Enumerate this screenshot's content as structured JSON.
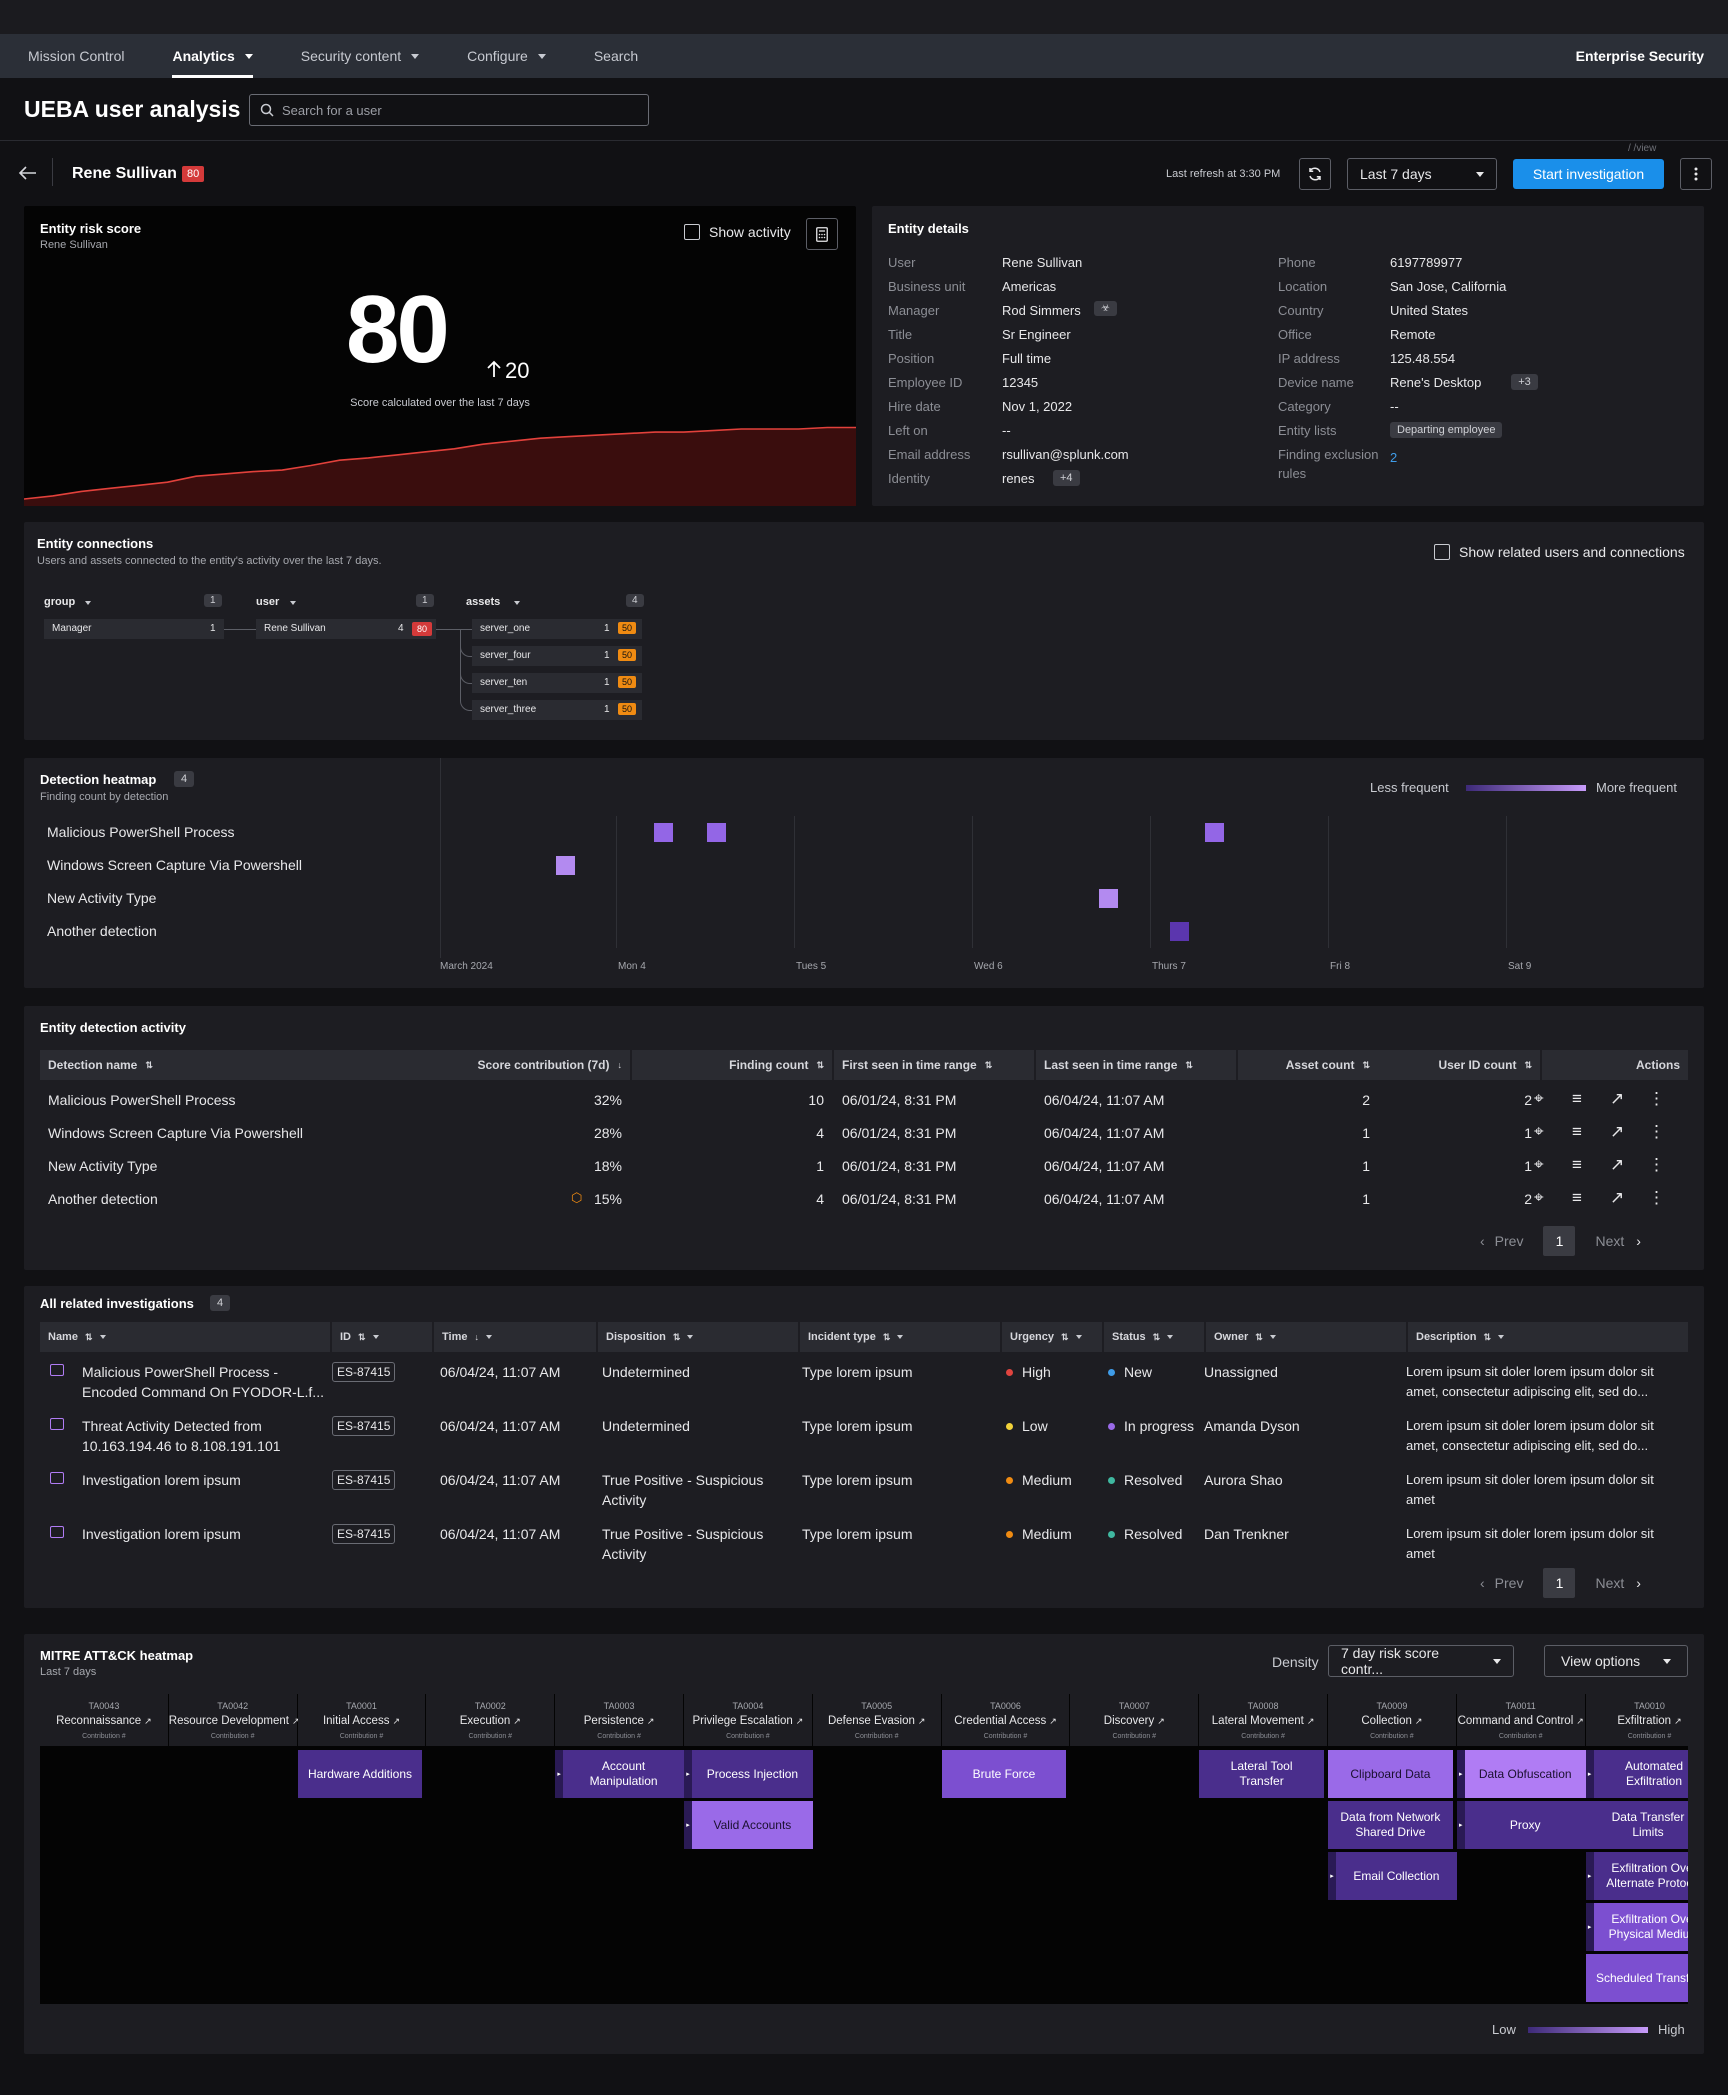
{
  "nav": {
    "items": [
      {
        "label": "Mission Control",
        "dd": false
      },
      {
        "label": "Analytics",
        "dd": true
      },
      {
        "label": "Security content",
        "dd": true
      },
      {
        "label": "Configure",
        "dd": true
      },
      {
        "label": "Search",
        "dd": false
      }
    ],
    "brand": "Enterprise Security"
  },
  "page": {
    "title": "UEBA user analysis",
    "search_placeholder": "Search for a user",
    "view_hint": "/ /view"
  },
  "header": {
    "user": "Rene Sullivan",
    "score": "80",
    "last_refresh": "Last refresh at 3:30 PM",
    "range": "Last 7 days",
    "start": "Start investigation"
  },
  "risk": {
    "title": "Entity risk score",
    "subtitle": "Rene Sullivan",
    "show_activity": "Show activity",
    "score": "80",
    "delta": "20",
    "note": "Score calculated over the last 7 days",
    "trend": [
      4,
      8,
      14,
      18,
      22,
      26,
      34,
      37,
      40,
      42,
      48,
      55,
      58,
      62,
      66,
      70,
      76,
      80,
      84,
      86,
      88,
      90,
      92,
      92,
      94,
      96,
      96,
      96,
      98,
      98
    ]
  },
  "details": {
    "title": "Entity details",
    "left": [
      {
        "k": "User",
        "v": "Rene Sullivan"
      },
      {
        "k": "Business unit",
        "v": "Americas"
      },
      {
        "k": "Manager",
        "v": "Rod Simmers",
        "icon": true
      },
      {
        "k": "Title",
        "v": "Sr Engineer"
      },
      {
        "k": "Position",
        "v": "Full time"
      },
      {
        "k": "Employee ID",
        "v": "12345"
      },
      {
        "k": "Hire date",
        "v": "Nov 1, 2022"
      },
      {
        "k": "Left on",
        "v": "--"
      },
      {
        "k": "Email address",
        "v": "rsullivan@splunk.com"
      },
      {
        "k": "Identity",
        "v": "renes",
        "extra": "+4"
      }
    ],
    "right": [
      {
        "k": "Phone",
        "v": "6197789977"
      },
      {
        "k": "Location",
        "v": "San Jose, California"
      },
      {
        "k": "Country",
        "v": "United States"
      },
      {
        "k": "Office",
        "v": "Remote"
      },
      {
        "k": "IP address",
        "v": "125.48.554"
      },
      {
        "k": "Device name",
        "v": "Rene's Desktop",
        "extra": "+3"
      },
      {
        "k": "Category",
        "v": "--"
      },
      {
        "k": "Entity lists",
        "v": "",
        "tag": "Departing employee"
      },
      {
        "k": "Finding exclusion",
        "k2": "rules",
        "v": "2",
        "link": true
      }
    ]
  },
  "connections": {
    "title": "Entity connections",
    "subtitle": "Users and assets connected to the entity's activity over the last 7 days.",
    "toggle": "Show related users and connections",
    "cols": [
      {
        "h": "group",
        "n": "1"
      },
      {
        "h": "user",
        "n": "1"
      },
      {
        "h": "assets",
        "n": "4"
      }
    ],
    "group": {
      "name": "Manager",
      "n": "1"
    },
    "user": {
      "name": "Rene Sullivan",
      "n": "4",
      "score": "80"
    },
    "assets": [
      {
        "name": "server_one",
        "n": "1",
        "s": "50"
      },
      {
        "name": "server_four",
        "n": "1",
        "s": "50"
      },
      {
        "name": "server_ten",
        "n": "1",
        "s": "50"
      },
      {
        "name": "server_three",
        "n": "1",
        "s": "50"
      }
    ]
  },
  "heatmap": {
    "title": "Detection heatmap",
    "count": "4",
    "subtitle": "Finding count by detection",
    "less": "Less frequent",
    "more": "More frequent",
    "rows": [
      "Malicious PowerShell Process",
      "Windows Screen Capture Via Powershell",
      "New Activity Type",
      "Another detection"
    ],
    "xlabels": [
      "March 2024",
      "Mon 4",
      "Tues 5",
      "Wed 6",
      "Thurs 7",
      "Fri 8",
      "Sat 9"
    ],
    "cells": [
      {
        "r": 0,
        "d": 1.2,
        "i": 0.6
      },
      {
        "r": 0,
        "d": 1.5,
        "i": 0.6
      },
      {
        "r": 0,
        "d": 4.3,
        "i": 0.6
      },
      {
        "r": 1,
        "d": 0.65,
        "i": 0.3
      },
      {
        "r": 2,
        "d": 3.7,
        "i": 0.3
      },
      {
        "r": 3,
        "d": 4.1,
        "i": 0.9
      }
    ]
  },
  "activity": {
    "title": "Entity detection activity",
    "headers": [
      "Detection name",
      "Score contribution (7d)",
      "Finding count",
      "First seen in time range",
      "Last seen in time range",
      "Asset count",
      "User ID count",
      "Actions"
    ],
    "rows": [
      {
        "name": "Malicious PowerShell Process",
        "score": "32%",
        "count": "10",
        "first": "06/01/24, 8:31 PM",
        "last": "06/04/24, 11:07 AM",
        "asset": "2",
        "uid": "2"
      },
      {
        "name": "Windows Screen Capture Via Powershell",
        "score": "28%",
        "count": "4",
        "first": "06/01/24, 8:31 PM",
        "last": "06/04/24, 11:07 AM",
        "asset": "1",
        "uid": "1"
      },
      {
        "name": "New Activity Type",
        "score": "18%",
        "count": "1",
        "first": "06/01/24, 8:31 PM",
        "last": "06/04/24, 11:07 AM",
        "asset": "1",
        "uid": "1"
      },
      {
        "name": "Another detection",
        "score": "15%",
        "count": "4",
        "first": "06/01/24, 8:31 PM",
        "last": "06/04/24, 11:07 AM",
        "asset": "1",
        "uid": "2",
        "warn": true
      }
    ],
    "prev": "Prev",
    "page": "1",
    "next": "Next"
  },
  "investigations": {
    "title": "All related investigations",
    "count": "4",
    "headers": [
      "Name",
      "ID",
      "Time",
      "Disposition",
      "Incident type",
      "Urgency",
      "Status",
      "Owner",
      "Description"
    ],
    "rows": [
      {
        "name": "Malicious PowerShell Process -",
        "name2": "Encoded Command On FYODOR-L.f...",
        "id": "ES-87415",
        "time": "06/04/24, 11:07 AM",
        "disp": "Undetermined",
        "disp2": "",
        "type": "Type lorem ipsum",
        "urg": "High",
        "urgc": "#e0443f",
        "status": "New",
        "statc": "#3f9ce8",
        "owner": "Unassigned",
        "desc": "Lorem ipsum sit doler  lorem ipsum dolor sit",
        "desc2": "amet, consectetur adipiscing elit, sed do..."
      },
      {
        "name": "Threat Activity Detected from",
        "name2": "10.163.194.46 to 8.108.191.101",
        "id": "ES-87415",
        "time": "06/04/24, 11:07 AM",
        "disp": "Undetermined",
        "disp2": "",
        "type": "Type lorem ipsum",
        "urg": "Low",
        "urgc": "#f2d23a",
        "status": "In progress",
        "statc": "#9a6ae8",
        "owner": "Amanda Dyson",
        "desc": "Lorem ipsum sit doler  lorem ipsum dolor sit",
        "desc2": "amet, consectetur adipiscing elit, sed do..."
      },
      {
        "name": "Investigation lorem ipsum",
        "name2": "",
        "id": "ES-87415",
        "time": "06/04/24, 11:07 AM",
        "disp": "True Positive - Suspicious",
        "disp2": "Activity",
        "type": "Type lorem ipsum",
        "urg": "Medium",
        "urgc": "#f08b12",
        "status": "Resolved",
        "statc": "#3fb8a0",
        "owner": "Aurora Shao",
        "desc": "Lorem ipsum sit doler  lorem ipsum dolor sit",
        "desc2": "amet"
      },
      {
        "name": "Investigation lorem ipsum",
        "name2": "",
        "id": "ES-87415",
        "time": "06/04/24, 11:07 AM",
        "disp": "True Positive - Suspicious",
        "disp2": "Activity",
        "type": "Type lorem ipsum",
        "urg": "Medium",
        "urgc": "#f08b12",
        "status": "Resolved",
        "statc": "#3fb8a0",
        "owner": "Dan Trenkner",
        "desc": "Lorem ipsum sit doler  lorem ipsum dolor sit",
        "desc2": "amet"
      }
    ],
    "prev": "Prev",
    "page": "1",
    "next": "Next"
  },
  "mitre": {
    "title": "MITRE ATT&CK heatmap",
    "subtitle": "Last 7 days",
    "density": "Density",
    "density_value": "7 day risk score contr...",
    "view_options": "View options",
    "low": "Low",
    "high": "High",
    "contrib": "Contribution #",
    "tactics": [
      {
        "id": "TA0043",
        "name": "Reconnaissance"
      },
      {
        "id": "TA0042",
        "name": "Resource Development"
      },
      {
        "id": "TA0001",
        "name": "Initial Access"
      },
      {
        "id": "TA0002",
        "name": "Execution"
      },
      {
        "id": "TA0003",
        "name": "Persistence"
      },
      {
        "id": "TA0004",
        "name": "Privilege Escalation"
      },
      {
        "id": "TA0005",
        "name": "Defense Evasion"
      },
      {
        "id": "TA0006",
        "name": "Credential Access"
      },
      {
        "id": "TA0007",
        "name": "Discovery"
      },
      {
        "id": "TA0008",
        "name": "Lateral Movement"
      },
      {
        "id": "TA0009",
        "name": "Collection"
      },
      {
        "id": "TA0011",
        "name": "Command and Control"
      },
      {
        "id": "TA0010",
        "name": "Exfiltration"
      }
    ],
    "techniques": [
      {
        "c": 2,
        "r": 0,
        "t": "Hardware Additions",
        "lvl": "dark"
      },
      {
        "c": 4,
        "r": 0,
        "t": "Account\nManipulation",
        "lvl": "dark",
        "ex": true
      },
      {
        "c": 5,
        "r": 0,
        "t": "Process Injection",
        "lvl": "dark",
        "ex": true
      },
      {
        "c": 5,
        "r": 1,
        "t": "Valid Accounts",
        "lvl": "mid",
        "ex": true
      },
      {
        "c": 7,
        "r": 0,
        "t": "Brute Force",
        "lvl": "base"
      },
      {
        "c": 9,
        "r": 0,
        "t": "Lateral Tool\nTransfer",
        "lvl": "dark"
      },
      {
        "c": 10,
        "r": 0,
        "t": "Clipboard Data",
        "lvl": "mid"
      },
      {
        "c": 10,
        "r": 1,
        "t": "Data from Network\nShared Drive",
        "lvl": "dark"
      },
      {
        "c": 10,
        "r": 2,
        "t": "Email Collection",
        "lvl": "dark",
        "ex": true
      },
      {
        "c": 11,
        "r": 0,
        "t": "Data Obfuscation",
        "lvl": "light",
        "ex": true
      },
      {
        "c": 11,
        "r": 1,
        "t": "Proxy",
        "lvl": "dark",
        "ex": true
      },
      {
        "c": 12,
        "r": 0,
        "t": "Automated\nExfiltration",
        "lvl": "dark",
        "ex": true
      },
      {
        "c": 12,
        "r": 1,
        "t": "Data Transfer\nLimits",
        "lvl": "dark"
      },
      {
        "c": 12,
        "r": 2,
        "t": "Exfiltration Over\nAlternate Protocol",
        "lvl": "dark",
        "ex": true
      },
      {
        "c": 12,
        "r": 3,
        "t": "Exfiltration Over\nPhysical Medium",
        "lvl": "base",
        "ex": true
      },
      {
        "c": 12,
        "r": 4,
        "t": "Scheduled Transfer",
        "lvl": "base"
      }
    ]
  }
}
